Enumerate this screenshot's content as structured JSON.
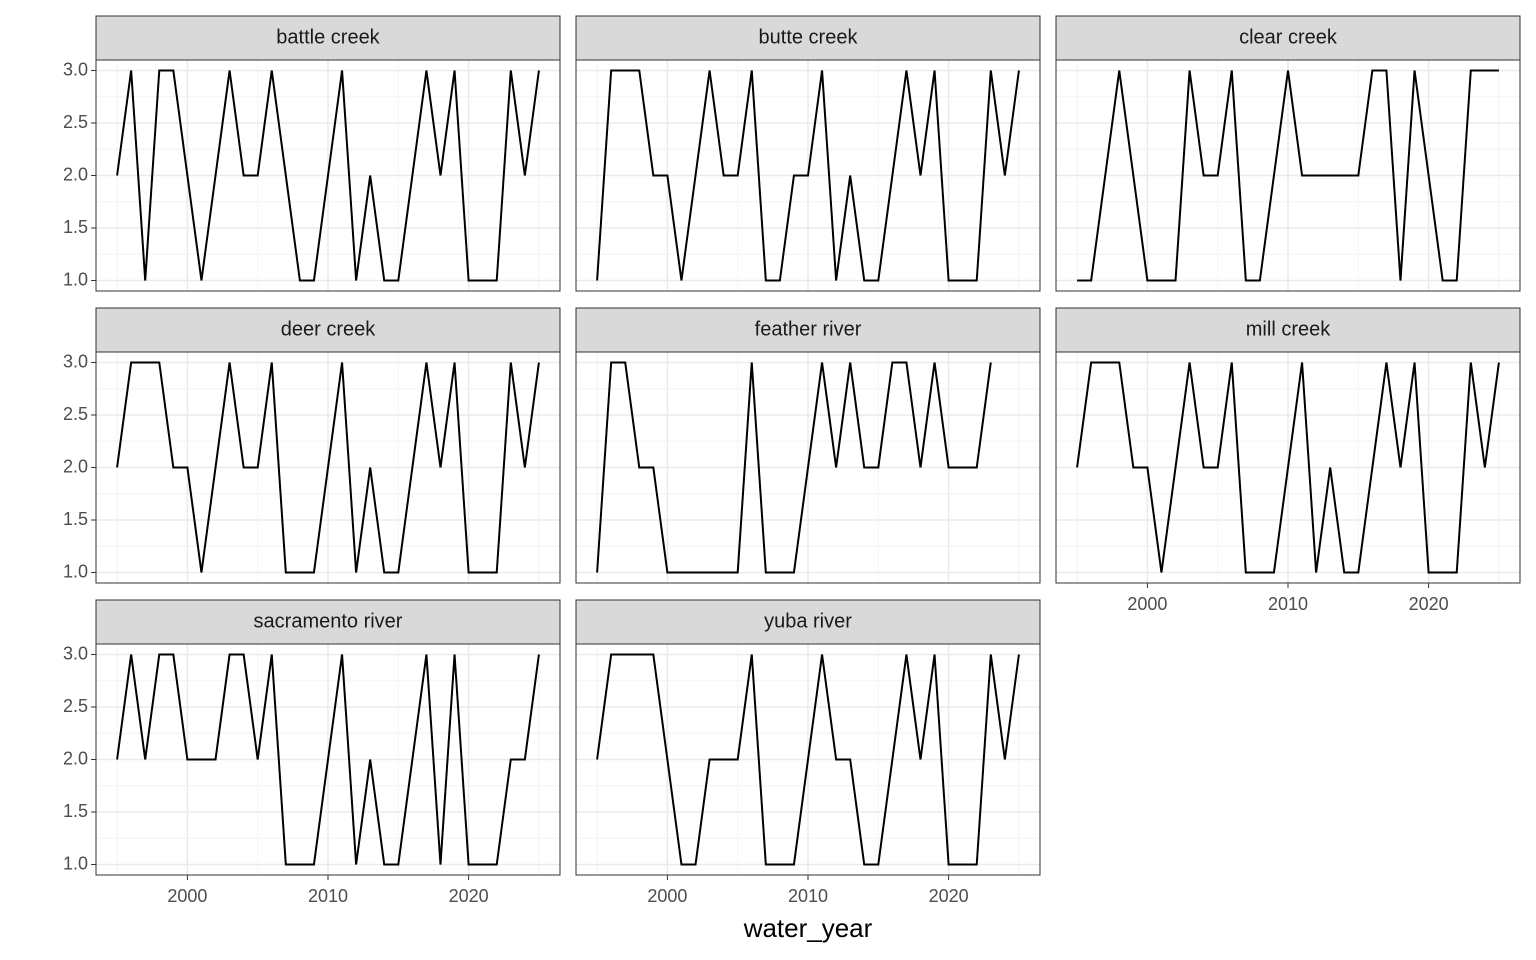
{
  "chart_data": {
    "type": "line",
    "xlabel": "water_year",
    "x": [
      1995,
      1996,
      1997,
      1998,
      1999,
      2000,
      2001,
      2002,
      2003,
      2004,
      2005,
      2006,
      2007,
      2008,
      2009,
      2010,
      2011,
      2012,
      2013,
      2014,
      2015,
      2016,
      2017,
      2018,
      2019,
      2020,
      2021,
      2022,
      2023,
      2024,
      2025
    ],
    "xlim": [
      1993.5,
      2026.5
    ],
    "xticks": [
      2000,
      2010,
      2020
    ],
    "ylim": [
      0.9,
      3.1
    ],
    "yticks": [
      {
        "value": 1,
        "label": "1.0"
      },
      {
        "value": 1.5,
        "label": "1.5"
      },
      {
        "value": 2,
        "label": "2.0"
      },
      {
        "value": 2.5,
        "label": "2.5"
      },
      {
        "value": 3,
        "label": "3.0"
      }
    ],
    "grid": true,
    "color": "#000000",
    "panels": [
      {
        "name": "battle creek",
        "values": [
          2,
          3,
          1,
          3,
          3,
          2,
          1,
          2,
          3,
          2,
          2,
          3,
          2,
          1,
          1,
          2,
          3,
          1,
          2,
          1,
          1,
          2,
          3,
          2,
          3,
          1,
          1,
          1,
          3,
          2,
          3
        ]
      },
      {
        "name": "butte creek",
        "values": [
          1,
          3,
          3,
          3,
          2,
          2,
          1,
          2,
          3,
          2,
          2,
          3,
          1,
          1,
          2,
          2,
          3,
          1,
          2,
          1,
          1,
          2,
          3,
          2,
          3,
          1,
          1,
          1,
          3,
          2,
          3
        ]
      },
      {
        "name": "clear creek",
        "values": [
          1,
          1,
          2,
          3,
          2,
          1,
          1,
          1,
          3,
          2,
          2,
          3,
          1,
          1,
          2,
          3,
          2,
          2,
          2,
          2,
          2,
          3,
          3,
          1,
          3,
          2,
          1,
          1,
          3,
          3,
          3
        ]
      },
      {
        "name": "deer creek",
        "values": [
          2,
          3,
          3,
          3,
          2,
          2,
          1,
          2,
          3,
          2,
          2,
          3,
          1,
          1,
          1,
          2,
          3,
          1,
          2,
          1,
          1,
          2,
          3,
          2,
          3,
          1,
          1,
          1,
          3,
          2,
          3
        ]
      },
      {
        "name": "feather river",
        "values": [
          1,
          3,
          3,
          2,
          2,
          1,
          1,
          1,
          1,
          1,
          1,
          3,
          1,
          1,
          1,
          2,
          3,
          2,
          3,
          2,
          2,
          3,
          3,
          2,
          3,
          2,
          2,
          2,
          3,
          null,
          null
        ]
      },
      {
        "name": "mill creek",
        "values": [
          2,
          3,
          3,
          3,
          2,
          2,
          1,
          2,
          3,
          2,
          2,
          3,
          1,
          1,
          1,
          2,
          3,
          1,
          2,
          1,
          1,
          2,
          3,
          2,
          3,
          1,
          1,
          1,
          3,
          2,
          3
        ]
      },
      {
        "name": "sacramento river",
        "values": [
          2,
          3,
          2,
          3,
          3,
          2,
          2,
          2,
          3,
          3,
          2,
          3,
          1,
          1,
          1,
          2,
          3,
          1,
          2,
          1,
          1,
          2,
          3,
          1,
          3,
          1,
          1,
          1,
          2,
          2,
          3
        ]
      },
      {
        "name": "yuba river",
        "values": [
          2,
          3,
          3,
          3,
          3,
          2,
          1,
          1,
          2,
          2,
          2,
          3,
          1,
          1,
          1,
          2,
          3,
          2,
          2,
          1,
          1,
          2,
          3,
          2,
          3,
          1,
          1,
          1,
          3,
          2,
          3
        ]
      }
    ]
  }
}
